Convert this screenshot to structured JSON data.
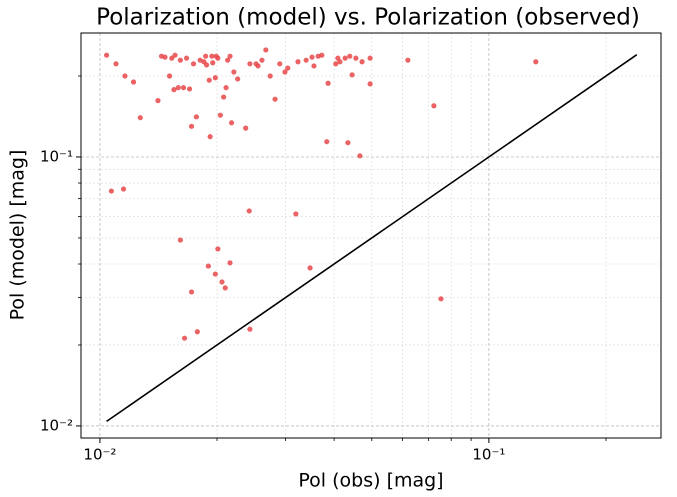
{
  "chart_data": {
    "type": "scatter",
    "title": "Polarization (model) vs. Polarization (observed)",
    "xlabel": "Pol (obs) [mag]",
    "ylabel": "Pol (model) [mag]",
    "xscale": "log",
    "yscale": "log",
    "grid": true,
    "xlim": [
      0.00894,
      0.277
    ],
    "ylim": [
      0.00902,
      0.289
    ],
    "xticks": [
      {
        "value": 0.01,
        "label": "10⁻²"
      },
      {
        "value": 0.1,
        "label": "10⁻¹"
      }
    ],
    "yticks": [
      {
        "value": 0.01,
        "label": "10⁻²"
      },
      {
        "value": 0.1,
        "label": "10⁻¹"
      }
    ],
    "xminorticks": [
      0.02,
      0.03,
      0.04,
      0.05,
      0.06,
      0.07,
      0.08,
      0.09,
      0.2
    ],
    "yminorticks": [
      0.02,
      0.03,
      0.04,
      0.05,
      0.06,
      0.07,
      0.08,
      0.09,
      0.2
    ],
    "series": [
      {
        "color": "#e8484a",
        "x": [
          0.0104,
          0.011,
          0.0116,
          0.0122,
          0.0127,
          0.0141,
          0.0144,
          0.0147,
          0.0151,
          0.0153,
          0.0155,
          0.0156,
          0.0159,
          0.0161,
          0.0164,
          0.0167,
          0.017,
          0.0172,
          0.0174,
          0.0177,
          0.0181,
          0.0185,
          0.0187,
          0.0188,
          0.0191,
          0.0192,
          0.0194,
          0.0195,
          0.0198,
          0.0199,
          0.0201,
          0.0204,
          0.0208,
          0.0211,
          0.0213,
          0.0216,
          0.0218,
          0.0221,
          0.0226,
          0.0237,
          0.0243,
          0.0252,
          0.0255,
          0.0261,
          0.0267,
          0.0274,
          0.0282,
          0.029,
          0.0299,
          0.0304,
          0.0323,
          0.0339,
          0.0351,
          0.0355,
          0.0364,
          0.0372,
          0.0383,
          0.0386,
          0.0404,
          0.0409,
          0.0414,
          0.0427,
          0.0434,
          0.0439,
          0.0445,
          0.0455,
          0.0466,
          0.0472,
          0.0495,
          0.0495,
          0.0619,
          0.0722,
          0.132,
          0.0107,
          0.0115,
          0.0161,
          0.0242,
          0.0319,
          0.0201,
          0.019,
          0.0216,
          0.0198,
          0.0206,
          0.021,
          0.0172,
          0.0347,
          0.0753,
          0.0243,
          0.0178,
          0.0165
        ],
        "values": [
          0.239,
          0.222,
          0.2,
          0.19,
          0.14,
          0.162,
          0.237,
          0.235,
          0.2,
          0.233,
          0.178,
          0.239,
          0.181,
          0.229,
          0.181,
          0.233,
          0.179,
          0.13,
          0.222,
          0.141,
          0.229,
          0.226,
          0.237,
          0.22,
          0.193,
          0.119,
          0.237,
          0.224,
          0.197,
          0.237,
          0.233,
          0.143,
          0.167,
          0.181,
          0.229,
          0.237,
          0.134,
          0.207,
          0.195,
          0.128,
          0.222,
          0.222,
          0.218,
          0.229,
          0.25,
          0.2,
          0.164,
          0.222,
          0.207,
          0.214,
          0.226,
          0.229,
          0.235,
          0.218,
          0.237,
          0.239,
          0.114,
          0.188,
          0.222,
          0.233,
          0.226,
          0.233,
          0.113,
          0.237,
          0.202,
          0.233,
          0.101,
          0.226,
          0.187,
          0.233,
          0.229,
          0.155,
          0.226,
          0.0747,
          0.076,
          0.0491,
          0.063,
          0.0614,
          0.0455,
          0.0393,
          0.0404,
          0.0367,
          0.0343,
          0.0326,
          0.0315,
          0.0387,
          0.0297,
          0.0229,
          0.0224,
          0.0212
        ]
      }
    ],
    "line": {
      "color": "#000000",
      "x": [
        0.0104,
        0.24
      ],
      "values": [
        0.0104,
        0.24
      ]
    }
  }
}
